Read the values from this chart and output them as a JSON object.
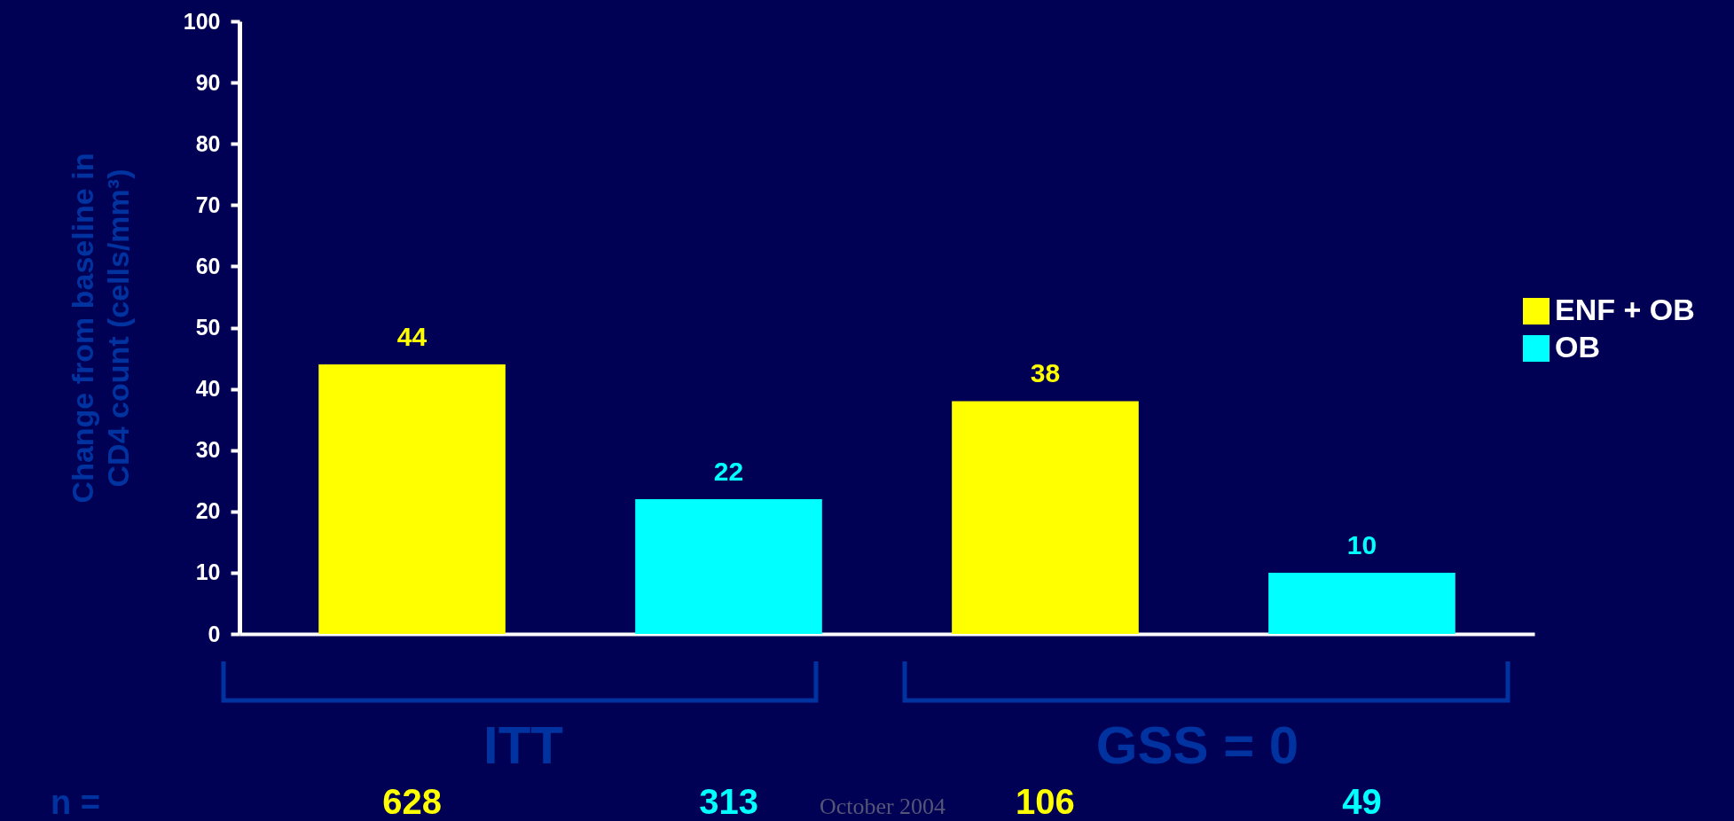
{
  "chart_data": {
    "type": "bar",
    "ylabel": "Change from baseline in\nCD4 count (cells/mm³)",
    "categories": [
      "628",
      "313",
      "106",
      "49"
    ],
    "series": [
      {
        "name": "ENF + OB",
        "color": "#ffff00",
        "values": [
          44,
          null,
          38,
          null
        ]
      },
      {
        "name": "OB",
        "color": "#00ffff",
        "values": [
          null,
          22,
          null,
          10
        ]
      }
    ],
    "ylim": [
      0,
      100
    ],
    "yticks": [
      0,
      10,
      20,
      30,
      40,
      50,
      60,
      70,
      80,
      90,
      100
    ],
    "data_labels": true,
    "legend": "right",
    "grid": false,
    "annotations": [
      "ITT",
      "GSS = 0",
      "n =",
      "October 2004"
    ]
  }
}
